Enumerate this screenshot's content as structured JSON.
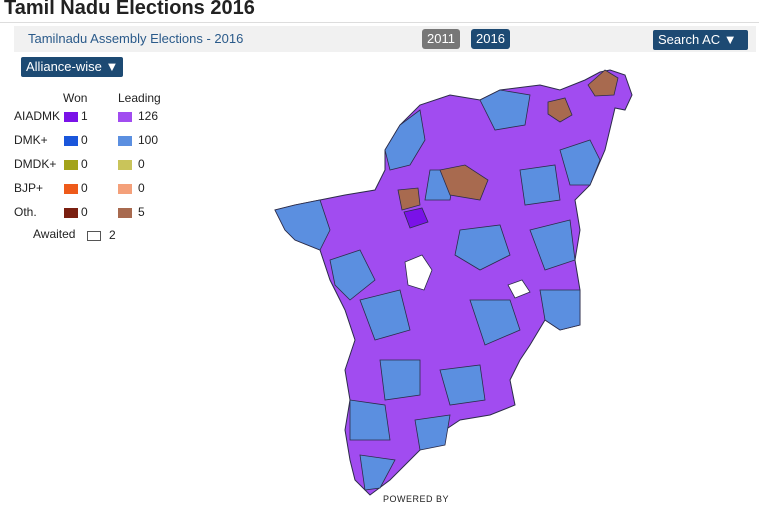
{
  "header": {
    "title": "Tamil Nadu Elections 2016",
    "subtitle": "Tamilnadu Assembly Elections - 2016",
    "year_buttons": [
      "2011",
      "2016"
    ],
    "search": "Search AC ▼",
    "view": "Alliance-wise ▼"
  },
  "legend": {
    "won_header": "Won",
    "leading_header": "Leading",
    "rows": [
      {
        "party": "AIADMK",
        "won": 1,
        "leading": 126
      },
      {
        "party": "DMK+",
        "won": 0,
        "leading": 100
      },
      {
        "party": "DMDK+",
        "won": 0,
        "leading": 0
      },
      {
        "party": "BJP+",
        "won": 0,
        "leading": 0
      },
      {
        "party": "Oth.",
        "won": 0,
        "leading": 5
      }
    ],
    "awaited_label": "Awaited",
    "awaited": 2
  },
  "footer": {
    "powered_by": "POWERED BY"
  }
}
